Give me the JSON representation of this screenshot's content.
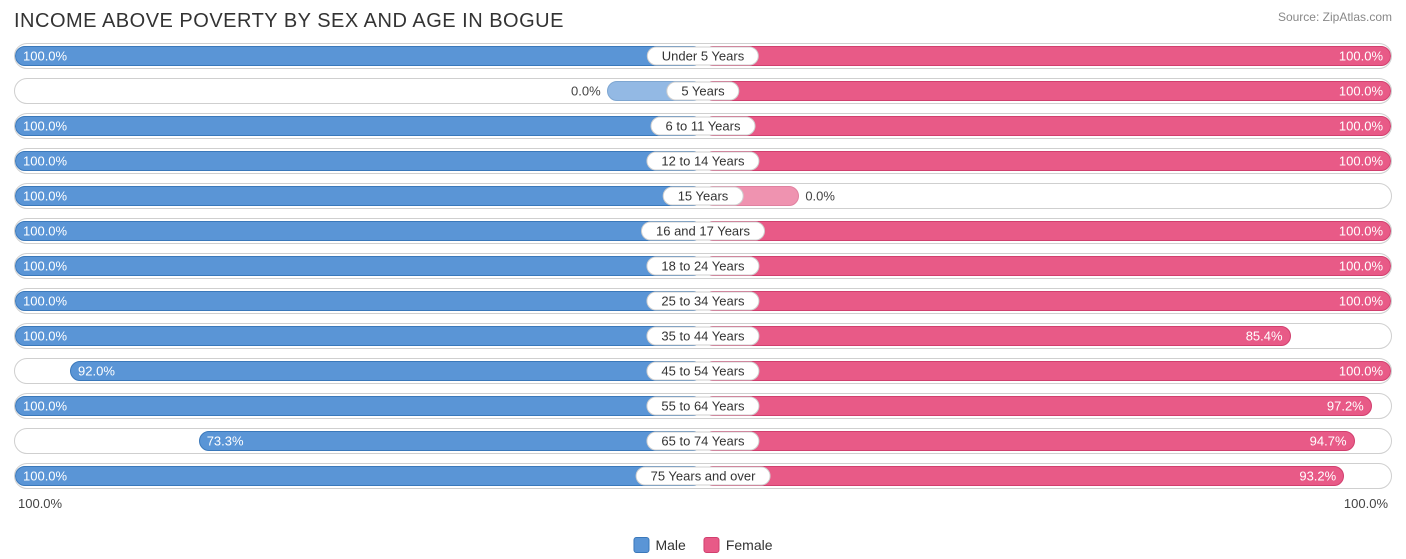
{
  "title": "INCOME ABOVE POVERTY BY SEX AND AGE IN BOGUE",
  "source": "Source: ZipAtlas.com",
  "axis": {
    "left": "100.0%",
    "right": "100.0%"
  },
  "legend": [
    {
      "label": "Male",
      "color": "#5a95d6",
      "border": "#3a78ba"
    },
    {
      "label": "Female",
      "color": "#e85a87",
      "border": "#d13f6e"
    }
  ],
  "colors": {
    "male_fill": "#5a95d6",
    "male_border": "#3a78ba",
    "female_fill": "#e85a87",
    "female_border": "#d13f6e",
    "row_border": "#cfcfcf",
    "bg": "#ffffff",
    "text": "#333",
    "muted": "#888"
  },
  "chart": {
    "type": "diverging-bar",
    "male_direction": "left",
    "female_direction": "right",
    "short_bar_pct": 14,
    "rows": [
      {
        "category": "Under 5 Years",
        "male": 100.0,
        "female": 100.0
      },
      {
        "category": "5 Years",
        "male": 0.0,
        "female": 100.0
      },
      {
        "category": "6 to 11 Years",
        "male": 100.0,
        "female": 100.0
      },
      {
        "category": "12 to 14 Years",
        "male": 100.0,
        "female": 100.0
      },
      {
        "category": "15 Years",
        "male": 100.0,
        "female": 0.0
      },
      {
        "category": "16 and 17 Years",
        "male": 100.0,
        "female": 100.0
      },
      {
        "category": "18 to 24 Years",
        "male": 100.0,
        "female": 100.0
      },
      {
        "category": "25 to 34 Years",
        "male": 100.0,
        "female": 100.0
      },
      {
        "category": "35 to 44 Years",
        "male": 100.0,
        "female": 85.4
      },
      {
        "category": "45 to 54 Years",
        "male": 92.0,
        "female": 100.0
      },
      {
        "category": "55 to 64 Years",
        "male": 100.0,
        "female": 97.2
      },
      {
        "category": "65 to 74 Years",
        "male": 73.3,
        "female": 94.7
      },
      {
        "category": "75 Years and over",
        "male": 100.0,
        "female": 93.2
      }
    ]
  }
}
